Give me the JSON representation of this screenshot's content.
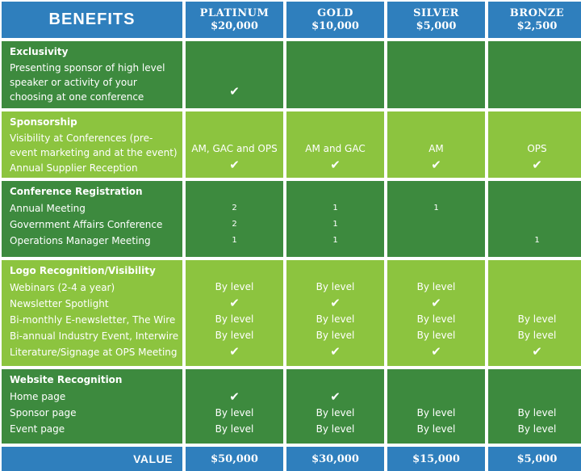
{
  "header": {
    "benefits": "BENEFITS",
    "tiers": [
      {
        "name": "PLATINUM",
        "price": "$20,000"
      },
      {
        "name": "GOLD",
        "price": "$10,000"
      },
      {
        "name": "SILVER",
        "price": "$5,000"
      },
      {
        "name": "BRONZE",
        "price": "$2,500"
      }
    ]
  },
  "sections": [
    {
      "title": "Exclusivity",
      "items": [
        "Presenting sponsor of high level speaker or activity of your choosing at one conference"
      ],
      "values": [
        [
          "✔"
        ],
        [
          ""
        ],
        [
          ""
        ],
        [
          ""
        ]
      ]
    },
    {
      "title": "Sponsorship",
      "items": [
        "Visibility at Conferences (pre-event marketing and at the event)",
        "Annual Supplier Reception"
      ],
      "values": [
        [
          "AM, GAC and OPS",
          "✔"
        ],
        [
          "AM and GAC",
          "✔"
        ],
        [
          "AM",
          "✔"
        ],
        [
          "OPS",
          "✔"
        ]
      ]
    },
    {
      "title": "Conference Registration",
      "items": [
        "Annual Meeting",
        "Government Affairs Conference",
        "Operations Manager Meeting"
      ],
      "values": [
        [
          "2",
          "2",
          "1"
        ],
        [
          "1",
          "1",
          "1"
        ],
        [
          "1",
          "",
          ""
        ],
        [
          "",
          "",
          "1"
        ]
      ]
    },
    {
      "title": "Logo Recognition/Visibility",
      "items": [
        "Webinars (2-4 a year)",
        "Newsletter Spotlight",
        "Bi-monthly E-newsletter, The Wire",
        "Bi-annual  Industry Event, Interwire",
        "Literature/Signage at OPS Meeting"
      ],
      "values": [
        [
          "By level",
          "✔",
          "By level",
          "By level",
          "✔"
        ],
        [
          "By level",
          "✔",
          "By level",
          "By level",
          "✔"
        ],
        [
          "By level",
          "✔",
          "By level",
          "By level",
          "✔"
        ],
        [
          "",
          "",
          "By level",
          "By level",
          "✔"
        ]
      ]
    },
    {
      "title": "Website Recognition",
      "items": [
        "Home page",
        "Sponsor page",
        "Event page"
      ],
      "values": [
        [
          "✔",
          "By level",
          "By level"
        ],
        [
          "✔",
          "By level",
          "By level"
        ],
        [
          "",
          "By level",
          "By level"
        ],
        [
          "",
          "By level",
          "By level"
        ]
      ]
    }
  ],
  "footer": {
    "label": "VALUE",
    "values": [
      "$50,000",
      "$30,000",
      "$15,000",
      "$5,000"
    ]
  },
  "colors": {
    "header_blue": "#2f7fbd",
    "dark_green": "#3d8a3e",
    "light_green": "#8cc43f"
  }
}
